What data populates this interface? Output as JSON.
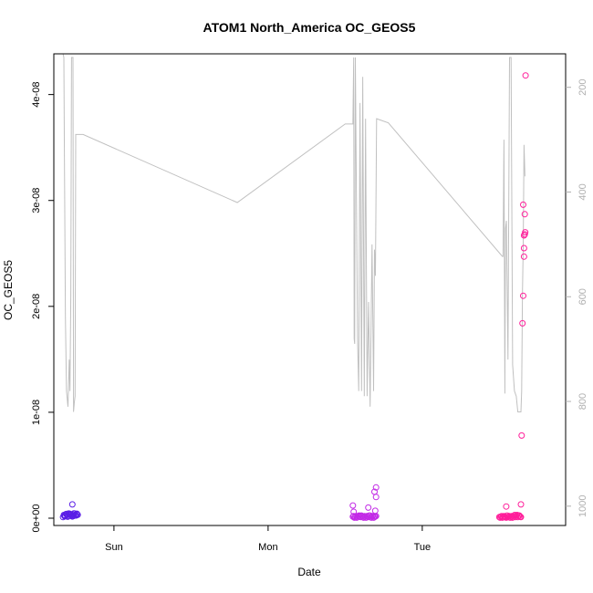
{
  "chart_data": {
    "type": "scatter",
    "title": "ATOM1 North_America OC_GEOS5",
    "xlabel": "Date",
    "ylabel": "OC_GEOS5",
    "x_ticks": [
      "Sun",
      "Mon",
      "Tue"
    ],
    "x_tick_days": [
      0,
      1,
      2
    ],
    "xlim_days": [
      -0.39,
      2.93
    ],
    "ylim": [
      0,
      4.35e-08
    ],
    "y_ticks": [
      {
        "value": 0,
        "label": "0e+00"
      },
      {
        "value": 1e-08,
        "label": "1e-08"
      },
      {
        "value": 2e-08,
        "label": "2e-08"
      },
      {
        "value": 3e-08,
        "label": "3e-08"
      },
      {
        "value": 4e-08,
        "label": "4e-08"
      }
    ],
    "right_axis": {
      "ticks": [
        200,
        400,
        600,
        800,
        1000
      ],
      "range": [
        1023,
        143
      ],
      "color": "#b0b0b0"
    },
    "colors": {
      "line": "#c0c0c0",
      "start": "#5a1ee6",
      "mid": "#c22ae6",
      "end": "#ff1e9a"
    },
    "line_series": [
      [
        -0.33,
        125
      ],
      [
        -0.325,
        143
      ],
      [
        -0.322,
        300
      ],
      [
        -0.315,
        640
      ],
      [
        -0.308,
        780
      ],
      [
        -0.298,
        810
      ],
      [
        -0.29,
        720
      ],
      [
        -0.285,
        780
      ],
      [
        -0.28,
        600
      ],
      [
        -0.275,
        143
      ],
      [
        -0.266,
        143
      ],
      [
        -0.262,
        820
      ],
      [
        -0.256,
        800
      ],
      [
        -0.252,
        790
      ],
      [
        -0.248,
        290
      ],
      [
        -0.2,
        290
      ],
      [
        0.8,
        420
      ],
      [
        1.5,
        270
      ],
      [
        1.55,
        270
      ],
      [
        1.555,
        143
      ],
      [
        1.558,
        680
      ],
      [
        1.562,
        690
      ],
      [
        1.566,
        143
      ],
      [
        1.58,
        680
      ],
      [
        1.588,
        780
      ],
      [
        1.596,
        230
      ],
      [
        1.606,
        780
      ],
      [
        1.614,
        180
      ],
      [
        1.624,
        790
      ],
      [
        1.632,
        260
      ],
      [
        1.642,
        790
      ],
      [
        1.652,
        610
      ],
      [
        1.662,
        810
      ],
      [
        1.674,
        500
      ],
      [
        1.684,
        780
      ],
      [
        1.69,
        510
      ],
      [
        1.696,
        560
      ],
      [
        1.704,
        260
      ],
      [
        1.78,
        268
      ],
      [
        2.52,
        523
      ],
      [
        2.524,
        523
      ],
      [
        2.53,
        300
      ],
      [
        2.536,
        785
      ],
      [
        2.54,
        470
      ],
      [
        2.546,
        455
      ],
      [
        2.556,
        720
      ],
      [
        2.566,
        143
      ],
      [
        2.576,
        143
      ],
      [
        2.586,
        730
      ],
      [
        2.598,
        780
      ],
      [
        2.61,
        790
      ],
      [
        2.62,
        820
      ],
      [
        2.64,
        820
      ],
      [
        2.645,
        780
      ],
      [
        2.65,
        590
      ],
      [
        2.655,
        505
      ],
      [
        2.66,
        310
      ],
      [
        2.666,
        370
      ]
    ],
    "scatter_groups": [
      {
        "name": "",
        "color": "#5a1ee6",
        "x": [
          -0.33,
          -0.32,
          -0.31,
          -0.3,
          -0.29,
          -0.28,
          -0.27,
          -0.26,
          -0.25,
          -0.24,
          -0.235,
          -0.325,
          -0.315,
          -0.305,
          -0.295,
          -0.285,
          -0.275,
          -0.265,
          -0.255,
          -0.245,
          -0.32,
          -0.3,
          -0.28,
          -0.26,
          -0.24,
          -0.27
        ],
        "y": [
          1e-10,
          2.6e-10,
          4e-10,
          2.2e-10,
          4.3e-10,
          3e-10,
          1.6e-10,
          4.6e-10,
          2.6e-10,
          3.6e-10,
          3.2e-10,
          3e-10,
          2e-10,
          3.4e-10,
          4.4e-10,
          3.9e-10,
          2.4e-10,
          3.4e-10,
          4.4e-10,
          2.6e-10,
          1.8e-10,
          1.4e-10,
          3.6e-10,
          2.2e-10,
          4.2e-10,
          1.3e-09
        ]
      },
      {
        "name": "",
        "color": "#c22ae6",
        "x": [
          1.55,
          1.56,
          1.57,
          1.58,
          1.59,
          1.6,
          1.61,
          1.62,
          1.63,
          1.64,
          1.65,
          1.66,
          1.67,
          1.68,
          1.69,
          1.7,
          1.555,
          1.565,
          1.575,
          1.585,
          1.595,
          1.605,
          1.615,
          1.625,
          1.635,
          1.645,
          1.655,
          1.665,
          1.675,
          1.685,
          1.695,
          1.55,
          1.555,
          1.695,
          1.7,
          1.7,
          1.69,
          1.65
        ],
        "y": [
          1.5e-10,
          5e-11,
          2e-10,
          1e-10,
          2.5e-10,
          1e-10,
          2e-10,
          5e-11,
          1.5e-10,
          2e-10,
          1e-10,
          2.5e-10,
          5e-11,
          2e-10,
          1.5e-10,
          2e-10,
          2e-10,
          1e-10,
          5e-11,
          2e-10,
          1.5e-10,
          2.5e-10,
          1e-10,
          2e-10,
          5e-11,
          1.5e-10,
          2.5e-10,
          1e-10,
          2e-10,
          5e-11,
          1.5e-10,
          1.2e-09,
          6e-10,
          7e-10,
          2e-09,
          2.9e-09,
          2.5e-09,
          1e-09
        ]
      },
      {
        "name": "",
        "color": "#ff1e9a",
        "x": [
          2.5,
          2.51,
          2.52,
          2.53,
          2.54,
          2.55,
          2.56,
          2.57,
          2.58,
          2.59,
          2.6,
          2.61,
          2.62,
          2.63,
          2.64,
          2.505,
          2.515,
          2.525,
          2.535,
          2.545,
          2.555,
          2.565,
          2.575,
          2.585,
          2.595,
          2.605,
          2.615,
          2.625,
          2.635,
          2.545,
          2.64,
          2.645,
          2.65,
          2.655,
          2.66,
          2.655,
          2.665,
          2.665,
          2.66,
          2.66,
          2.67,
          2.668
        ],
        "y": [
          1e-10,
          1.5e-10,
          5e-11,
          2e-10,
          1e-10,
          2.5e-10,
          1.5e-10,
          5e-11,
          2e-10,
          1e-10,
          3e-10,
          2e-10,
          1e-10,
          2.5e-10,
          1e-10,
          5e-11,
          2e-10,
          1e-10,
          1.5e-10,
          5e-11,
          1e-10,
          2e-10,
          1.5e-10,
          5e-11,
          2e-10,
          1e-10,
          3e-10,
          2.5e-10,
          1.5e-10,
          1.1e-09,
          1.3e-09,
          7.8e-09,
          1.84e-08,
          2.1e-08,
          2.47e-08,
          2.96e-08,
          2.87e-08,
          2.68e-08,
          2.67e-08,
          2.55e-08,
          4.18e-08,
          2.7e-08
        ]
      }
    ]
  }
}
